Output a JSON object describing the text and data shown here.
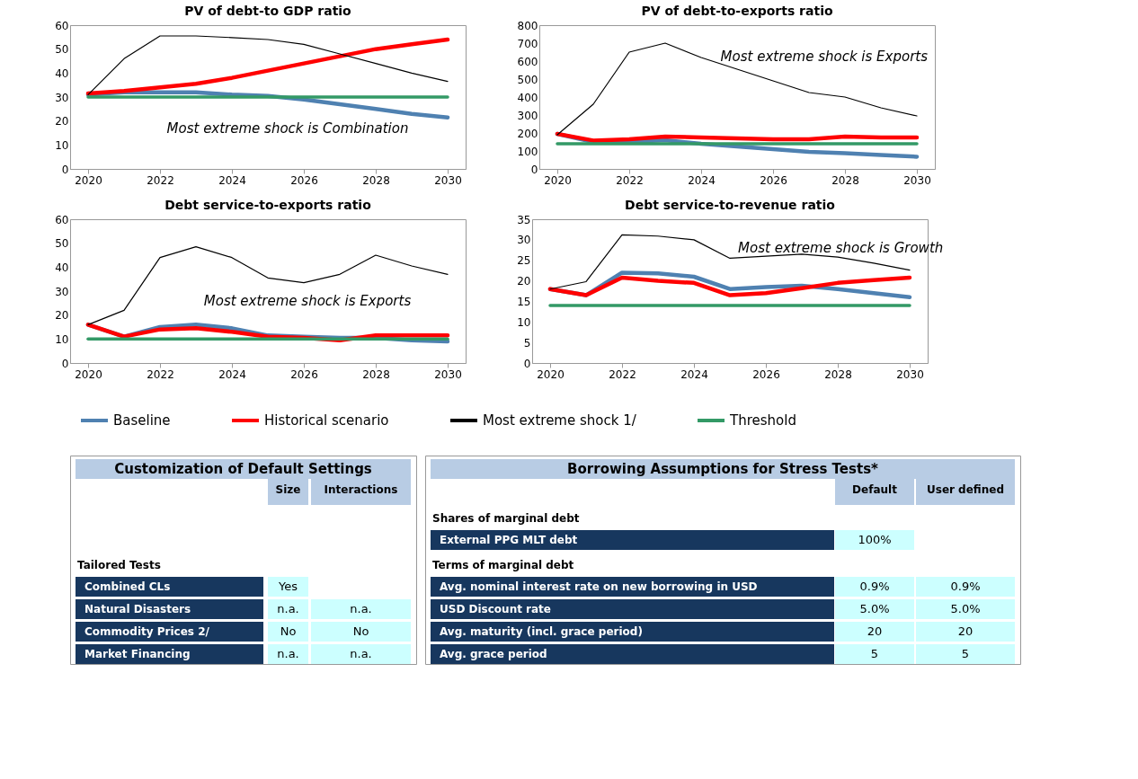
{
  "chart_data": [
    {
      "type": "line",
      "title": "PV of debt-to GDP ratio",
      "x": [
        2020,
        2021,
        2022,
        2023,
        2024,
        2025,
        2026,
        2027,
        2028,
        2029,
        2030
      ],
      "xlim": [
        2019.5,
        2030.5
      ],
      "xticks": [
        2020,
        2022,
        2024,
        2026,
        2028,
        2030
      ],
      "ylim": [
        0,
        60
      ],
      "yticks": [
        0,
        10,
        20,
        30,
        40,
        50,
        60
      ],
      "grid": false,
      "marker": "none",
      "legend": "bottom",
      "annotations": [
        "Most extreme shock is Combination"
      ],
      "series": [
        {
          "name": "Baseline",
          "color": "#4f81b1",
          "values": [
            31,
            32,
            32,
            32,
            31,
            30.5,
            29,
            27,
            25,
            23,
            21.5
          ]
        },
        {
          "name": "Historical scenario",
          "color": "#ff0000",
          "values": [
            31.5,
            32.5,
            34,
            35.5,
            38,
            41,
            44,
            47,
            50,
            52,
            54
          ]
        },
        {
          "name": "Most extreme shock 1/",
          "color": "#000000",
          "values": [
            31,
            46,
            55.5,
            55.5,
            54.8,
            54,
            52,
            48,
            44,
            40,
            36.5
          ]
        },
        {
          "name": "Threshold",
          "color": "#339966",
          "values": [
            30,
            30,
            30,
            30,
            30,
            30,
            30,
            30,
            30,
            30,
            30
          ]
        }
      ]
    },
    {
      "type": "line",
      "title": "PV of debt-to-exports ratio",
      "x": [
        2020,
        2021,
        2022,
        2023,
        2024,
        2025,
        2026,
        2027,
        2028,
        2029,
        2030
      ],
      "xlim": [
        2019.5,
        2030.5
      ],
      "xticks": [
        2020,
        2022,
        2024,
        2026,
        2028,
        2030
      ],
      "ylim": [
        0,
        800
      ],
      "yticks": [
        0,
        100,
        200,
        300,
        400,
        500,
        600,
        700,
        800
      ],
      "grid": false,
      "marker": "none",
      "legend": "bottom",
      "annotations": [
        "Most extreme shock is Exports"
      ],
      "series": [
        {
          "name": "Baseline",
          "color": "#4f81b1",
          "values": [
            195,
            150,
            150,
            160,
            140,
            125,
            110,
            95,
            88,
            78,
            68
          ]
        },
        {
          "name": "Historical scenario",
          "color": "#ff0000",
          "values": [
            195,
            158,
            165,
            180,
            175,
            170,
            165,
            165,
            180,
            175,
            175
          ]
        },
        {
          "name": "Most extreme shock 1/",
          "color": "#000000",
          "values": [
            190,
            360,
            650,
            700,
            620,
            555,
            490,
            425,
            400,
            340,
            295
          ]
        },
        {
          "name": "Threshold",
          "color": "#339966",
          "values": [
            140,
            140,
            140,
            140,
            140,
            140,
            140,
            140,
            140,
            140,
            140
          ]
        }
      ]
    },
    {
      "type": "line",
      "title": "Debt service-to-exports ratio",
      "x": [
        2020,
        2021,
        2022,
        2023,
        2024,
        2025,
        2026,
        2027,
        2028,
        2029,
        2030
      ],
      "xlim": [
        2019.5,
        2030.5
      ],
      "xticks": [
        2020,
        2022,
        2024,
        2026,
        2028,
        2030
      ],
      "ylim": [
        0,
        60
      ],
      "yticks": [
        0,
        10,
        20,
        30,
        40,
        50,
        60
      ],
      "grid": false,
      "marker": "none",
      "legend": "bottom",
      "annotations": [
        "Most extreme shock is Exports"
      ],
      "series": [
        {
          "name": "Baseline",
          "color": "#4f81b1",
          "values": [
            16,
            11,
            15,
            16,
            14.5,
            11.5,
            11,
            10.5,
            10.5,
            9.5,
            9
          ]
        },
        {
          "name": "Historical scenario",
          "color": "#ff0000",
          "values": [
            16,
            11,
            14,
            14.5,
            13,
            11,
            10.5,
            9.5,
            11.5,
            11.5,
            11.5
          ]
        },
        {
          "name": "Most extreme shock 1/",
          "color": "#000000",
          "values": [
            16,
            22,
            44,
            48.5,
            44,
            35.5,
            33.5,
            37,
            45,
            40.5,
            37
          ]
        },
        {
          "name": "Threshold",
          "color": "#339966",
          "values": [
            10,
            10,
            10,
            10,
            10,
            10,
            10,
            10,
            10,
            10,
            10
          ]
        }
      ]
    },
    {
      "type": "line",
      "title": "Debt service-to-revenue ratio",
      "x": [
        2020,
        2021,
        2022,
        2023,
        2024,
        2025,
        2026,
        2027,
        2028,
        2029,
        2030
      ],
      "xlim": [
        2019.5,
        2030.5
      ],
      "xticks": [
        2020,
        2022,
        2024,
        2026,
        2028,
        2030
      ],
      "ylim": [
        0,
        35
      ],
      "yticks": [
        0,
        5,
        10,
        15,
        20,
        25,
        30,
        35
      ],
      "grid": false,
      "marker": "none",
      "legend": "bottom",
      "annotations": [
        "Most extreme shock is Growth"
      ],
      "series": [
        {
          "name": "Baseline",
          "color": "#4f81b1",
          "values": [
            18,
            16.5,
            22,
            21.8,
            21,
            18,
            18.5,
            18.8,
            18,
            17,
            16
          ]
        },
        {
          "name": "Historical scenario",
          "color": "#ff0000",
          "values": [
            18,
            16.5,
            20.8,
            20,
            19.5,
            16.5,
            17,
            18.2,
            19.5,
            20.2,
            20.8
          ]
        },
        {
          "name": "Most extreme shock 1/",
          "color": "#000000",
          "values": [
            18,
            19.8,
            31.2,
            30.9,
            30,
            25.5,
            26,
            26.5,
            25.8,
            24.3,
            22.6
          ]
        },
        {
          "name": "Threshold",
          "color": "#339966",
          "values": [
            14,
            14,
            14,
            14,
            14,
            14,
            14,
            14,
            14,
            14,
            14
          ]
        }
      ]
    },
    {
      "type": "other",
      "title": "Customization of Default Settings",
      "annotations": [
        "Size",
        "Interactions",
        "Tailored Tests",
        "Combined CLs",
        "Yes",
        "Natural Disasters",
        "n.a.",
        "n.a.",
        "Commodity Prices 2/",
        "No",
        "No",
        "Market Financing",
        "n.a.",
        "n.a."
      ]
    },
    {
      "type": "other",
      "title": "Borrowing Assumptions for Stress Tests*",
      "annotations": [
        "Default",
        "User defined",
        "Shares of marginal debt",
        "External PPG MLT debt",
        "100%",
        "Terms of marginal debt",
        "Avg. nominal interest rate on new borrowing in USD",
        "0.9%",
        "0.9%",
        "USD Discount rate",
        "5.0%",
        "5.0%",
        "Avg. maturity (incl. grace period)",
        "20",
        "20",
        "Avg. grace period",
        "5",
        "5"
      ]
    }
  ]
}
